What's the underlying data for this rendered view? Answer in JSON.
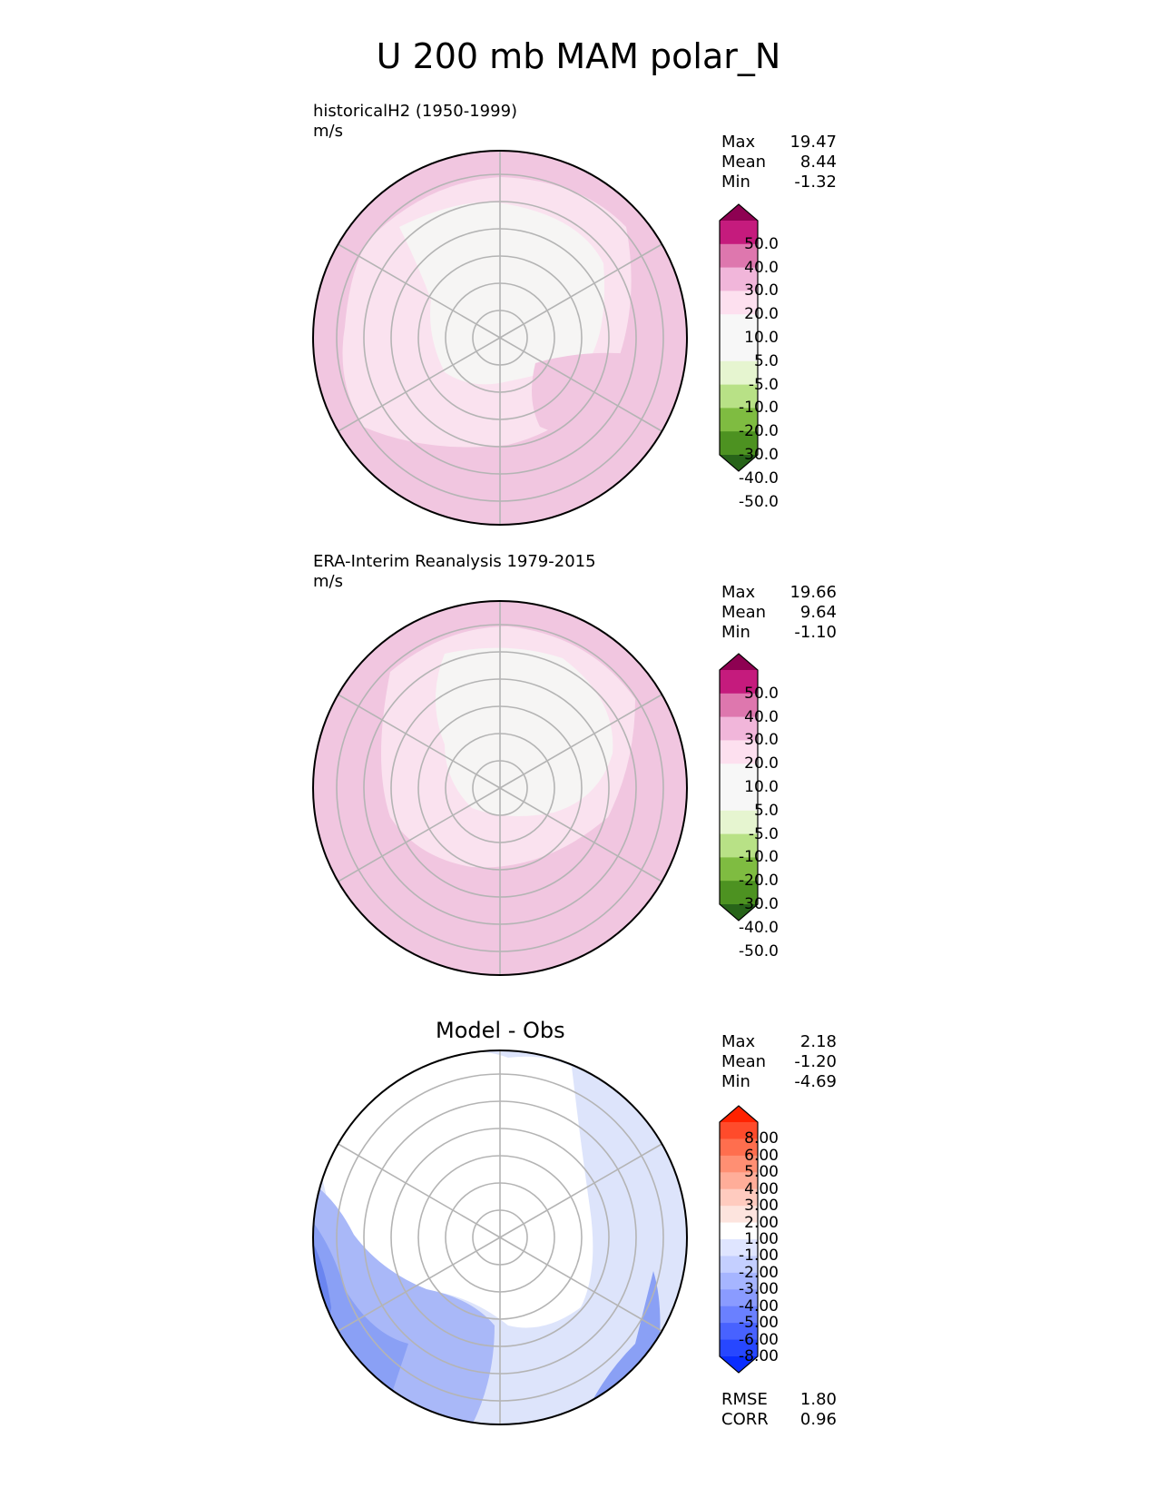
{
  "title": "U 200 mb MAM polar_N",
  "panels": [
    {
      "left_title": "historicalH2 (1950-1999)",
      "units": "m/s",
      "center_title": "",
      "stats": [
        {
          "label": "Max",
          "value": "19.47"
        },
        {
          "label": "Mean",
          "value": "8.44"
        },
        {
          "label": "Min",
          "value": "-1.32"
        }
      ],
      "extra_stats": [],
      "colorbar": {
        "ticks": [
          "50.0",
          "40.0",
          "30.0",
          "20.0",
          "10.0",
          "5.0",
          "-5.0",
          "-10.0",
          "-20.0",
          "-30.0",
          "-40.0",
          "-50.0"
        ],
        "colors": [
          "#8e0152",
          "#c51b7d",
          "#de77ae",
          "#f1b6da",
          "#fde0ef",
          "#f7f7f7",
          "#f7f7f7",
          "#e6f5d0",
          "#b8e186",
          "#7fbc41",
          "#4d9221",
          "#276419"
        ]
      }
    },
    {
      "left_title": "ERA-Interim Reanalysis 1979-2015",
      "units": "m/s",
      "center_title": "",
      "stats": [
        {
          "label": "Max",
          "value": "19.66"
        },
        {
          "label": "Mean",
          "value": "9.64"
        },
        {
          "label": "Min",
          "value": "-1.10"
        }
      ],
      "extra_stats": [],
      "colorbar": {
        "ticks": [
          "50.0",
          "40.0",
          "30.0",
          "20.0",
          "10.0",
          "5.0",
          "-5.0",
          "-10.0",
          "-20.0",
          "-30.0",
          "-40.0",
          "-50.0"
        ],
        "colors": [
          "#8e0152",
          "#c51b7d",
          "#de77ae",
          "#f1b6da",
          "#fde0ef",
          "#f7f7f7",
          "#f7f7f7",
          "#e6f5d0",
          "#b8e186",
          "#7fbc41",
          "#4d9221",
          "#276419"
        ]
      }
    },
    {
      "left_title": "",
      "units": "",
      "center_title": "Model - Obs",
      "stats": [
        {
          "label": "Max",
          "value": "2.18"
        },
        {
          "label": "Mean",
          "value": "-1.20"
        },
        {
          "label": "Min",
          "value": "-4.69"
        }
      ],
      "extra_stats": [
        {
          "label": "RMSE",
          "value": "1.80"
        },
        {
          "label": "CORR",
          "value": "0.96"
        }
      ],
      "colorbar": {
        "ticks": [
          "8.00",
          "6.00",
          "5.00",
          "4.00",
          "3.00",
          "2.00",
          "1.00",
          "-1.00",
          "-2.00",
          "-3.00",
          "-4.00",
          "-5.00",
          "-6.00",
          "-8.00"
        ],
        "colors": [
          "#ff2200",
          "#ff4b2b",
          "#ff6e4e",
          "#ff8f73",
          "#ffad99",
          "#ffcbbf",
          "#fde4de",
          "#ffffff",
          "#dfe5ff",
          "#c4cfff",
          "#a6b5ff",
          "#8a9bff",
          "#6a80ff",
          "#4862ff",
          "#2747ff",
          "#0a2dff"
        ]
      }
    }
  ],
  "chart_data": [
    {
      "type": "heatmap",
      "title": "historicalH2 (1950-1999)",
      "projection": "north polar stereographic",
      "units": "m/s",
      "summary": {
        "max": 19.47,
        "mean": 8.44,
        "min": -1.32
      },
      "levels": [
        -50,
        -40,
        -30,
        -20,
        -10,
        -5,
        5,
        10,
        20,
        30,
        40,
        50
      ],
      "dominant_level_ranges": [
        "5 to 10",
        "10 to 20",
        "-5 to 5"
      ]
    },
    {
      "type": "heatmap",
      "title": "ERA-Interim Reanalysis 1979-2015",
      "projection": "north polar stereographic",
      "units": "m/s",
      "summary": {
        "max": 19.66,
        "mean": 9.64,
        "min": -1.1
      },
      "levels": [
        -50,
        -40,
        -30,
        -20,
        -10,
        -5,
        5,
        10,
        20,
        30,
        40,
        50
      ],
      "dominant_level_ranges": [
        "5 to 10",
        "10 to 20",
        "-5 to 5"
      ]
    },
    {
      "type": "heatmap",
      "title": "Model - Obs",
      "projection": "north polar stereographic",
      "summary": {
        "max": 2.18,
        "mean": -1.2,
        "min": -4.69,
        "rmse": 1.8,
        "corr": 0.96
      },
      "levels": [
        -8,
        -6,
        -5,
        -4,
        -3,
        -2,
        -1,
        1,
        2,
        3,
        4,
        5,
        6,
        8
      ],
      "dominant_level_ranges": [
        "-1 to 1",
        "-2 to -1",
        "-3 to -2",
        "-4 to -3"
      ]
    }
  ]
}
